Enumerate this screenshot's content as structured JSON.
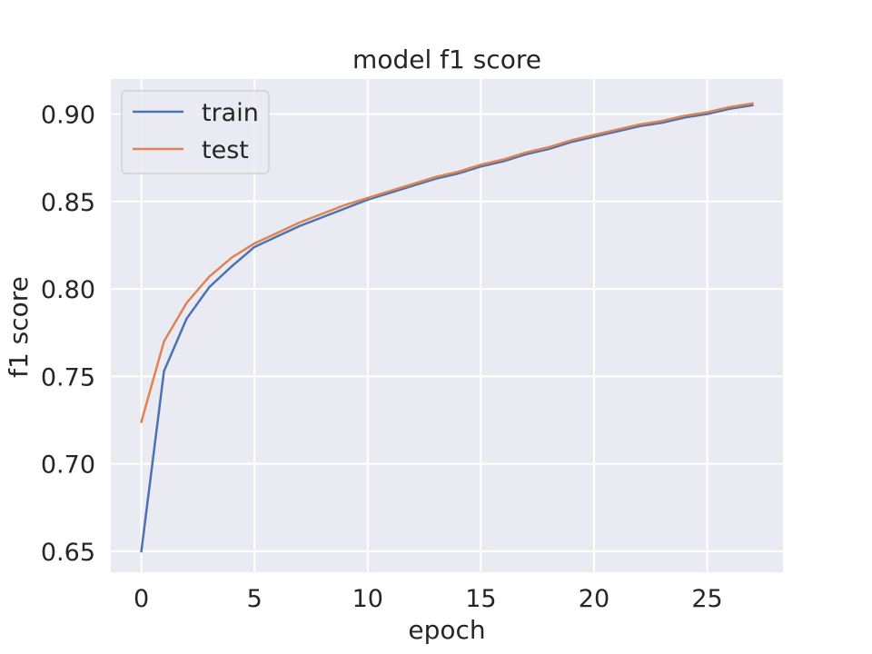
{
  "chart_data": {
    "type": "line",
    "title": "model f1 score",
    "xlabel": "epoch",
    "ylabel": "f1 score",
    "xlim": [
      -1.35,
      28.35
    ],
    "ylim": [
      0.638,
      0.92
    ],
    "xticks": [
      0,
      5,
      10,
      15,
      20,
      25
    ],
    "yticks": [
      0.65,
      0.7,
      0.75,
      0.8,
      0.85,
      0.9
    ],
    "ytick_labels": [
      "0.65",
      "0.70",
      "0.75",
      "0.80",
      "0.85",
      "0.90"
    ],
    "grid": true,
    "legend_position": "upper-left",
    "x": [
      0,
      1,
      2,
      3,
      4,
      5,
      6,
      7,
      8,
      9,
      10,
      11,
      12,
      13,
      14,
      15,
      16,
      17,
      18,
      19,
      20,
      21,
      22,
      23,
      24,
      25,
      26,
      27
    ],
    "series": [
      {
        "name": "train",
        "color": "#4c72b0",
        "values": [
          0.65,
          0.753,
          0.783,
          0.801,
          0.813,
          0.824,
          0.83,
          0.836,
          0.841,
          0.846,
          0.851,
          0.855,
          0.859,
          0.863,
          0.866,
          0.87,
          0.873,
          0.877,
          0.88,
          0.884,
          0.887,
          0.89,
          0.893,
          0.895,
          0.898,
          0.9,
          0.903,
          0.905
        ]
      },
      {
        "name": "test",
        "color": "#dd8452",
        "values": [
          0.724,
          0.77,
          0.792,
          0.807,
          0.818,
          0.826,
          0.832,
          0.838,
          0.843,
          0.848,
          0.852,
          0.856,
          0.86,
          0.864,
          0.867,
          0.871,
          0.874,
          0.878,
          0.881,
          0.885,
          0.888,
          0.891,
          0.894,
          0.896,
          0.899,
          0.901,
          0.904,
          0.906
        ]
      }
    ]
  }
}
